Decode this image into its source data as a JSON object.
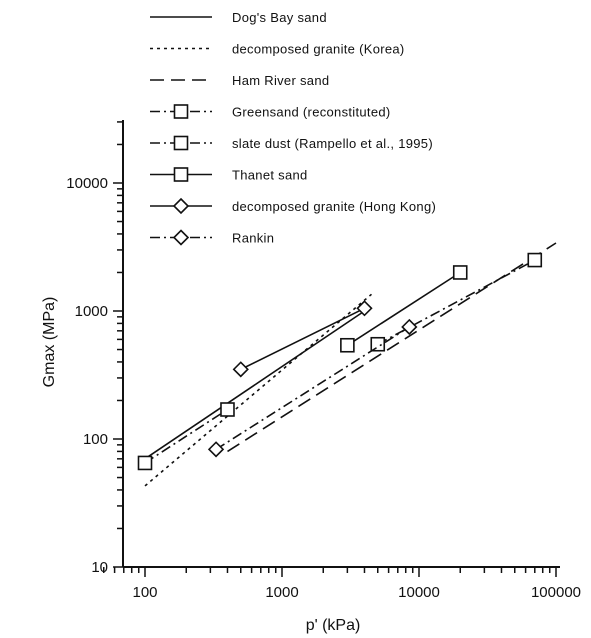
{
  "chart_data": {
    "type": "line",
    "title": "",
    "xlabel": "p' (kPa)",
    "ylabel": "Gmax (MPa)",
    "xscale": "log",
    "yscale": "log",
    "xlim": [
      50,
      100000
    ],
    "ylim": [
      10,
      30000
    ],
    "xticks": [
      100,
      1000,
      10000,
      100000
    ],
    "xtick_labels": [
      "100",
      "1000",
      "10000",
      "100000"
    ],
    "yticks": [
      10,
      100,
      1000,
      10000
    ],
    "ytick_labels": [
      "10",
      "100",
      "1000",
      "10000"
    ],
    "legend_position": "top",
    "series": [
      {
        "name": "Dog's Bay sand",
        "style": "solid",
        "marker": "none",
        "x": [
          100,
          4000
        ],
        "y": [
          70,
          1000
        ]
      },
      {
        "name": "decomposed granite (Korea)",
        "style": "dotted",
        "marker": "none",
        "x": [
          100,
          4500
        ],
        "y": [
          43,
          1350
        ]
      },
      {
        "name": "Ham River sand",
        "style": "dashed",
        "marker": "none",
        "x": [
          400,
          100000
        ],
        "y": [
          80,
          3400
        ]
      },
      {
        "name": "Greensand (reconstituted)",
        "style": "dashdot",
        "marker": "square",
        "x": [
          5000,
          70000
        ],
        "y": [
          550,
          2500
        ]
      },
      {
        "name": "slate dust (Rampello et al., 1995)",
        "style": "dashdot",
        "marker": "square",
        "x": [
          100,
          400
        ],
        "y": [
          65,
          170
        ]
      },
      {
        "name": "Thanet sand",
        "style": "solid",
        "marker": "square",
        "x": [
          3000,
          20000
        ],
        "y": [
          540,
          2000
        ]
      },
      {
        "name": "decomposed granite (Hong Kong)",
        "style": "solid",
        "marker": "diamond",
        "x": [
          500,
          4000
        ],
        "y": [
          350,
          1050
        ]
      },
      {
        "name": "Rankin",
        "style": "dashdot",
        "marker": "diamond",
        "x": [
          330,
          8500
        ],
        "y": [
          83,
          750
        ]
      }
    ]
  }
}
